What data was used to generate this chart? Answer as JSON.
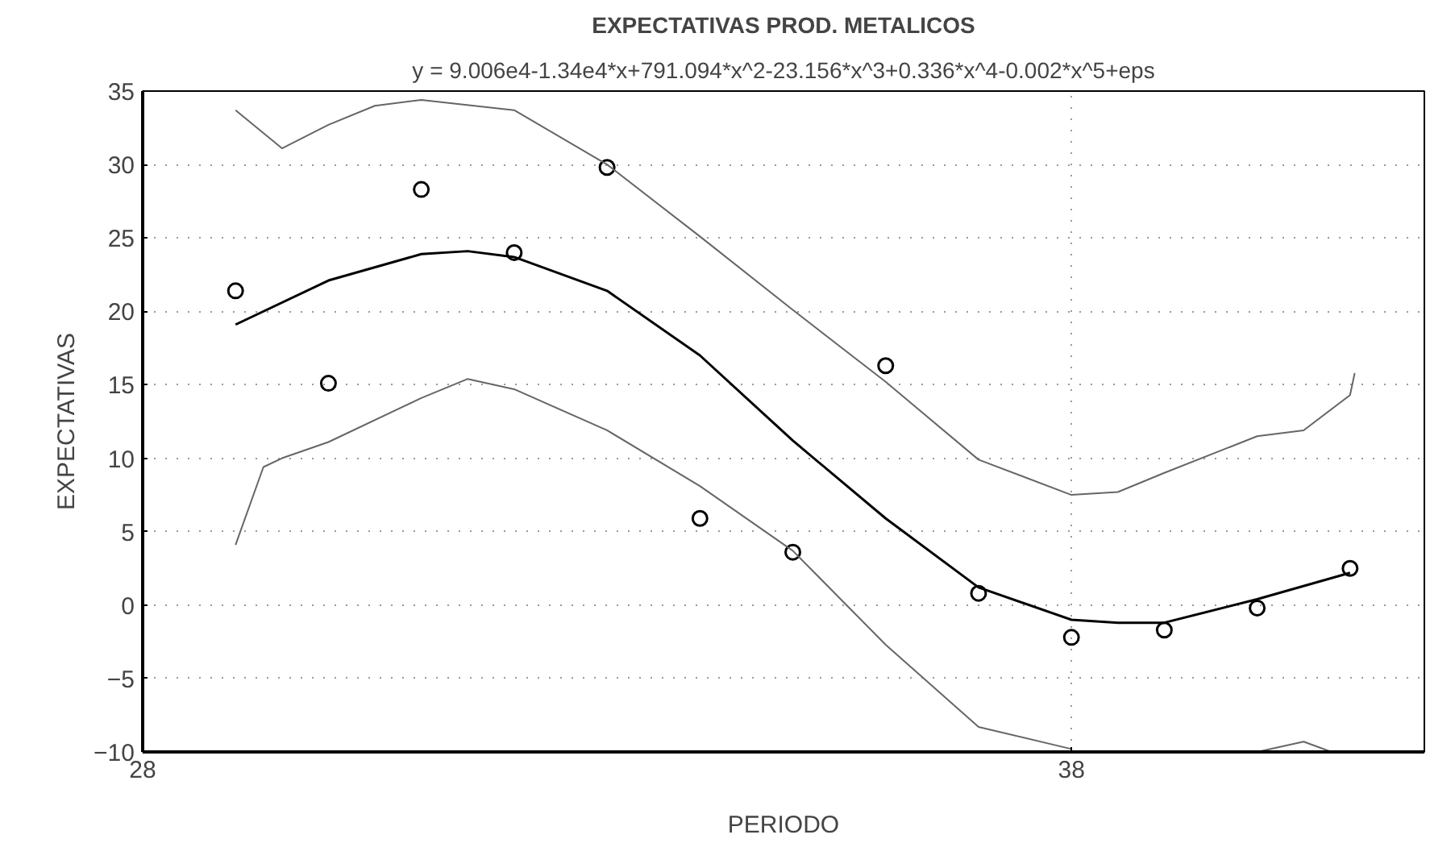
{
  "chart_data": {
    "type": "scatter",
    "title": "EXPECTATIVAS PROD. METALICOS",
    "subtitle": "y = 9.006e4-1.34e4*x+791.094*x^2-23.156*x^3+0.336*x^4-0.002*x^5+eps",
    "xlabel": "PERIODO",
    "ylabel": "EXPECTATIVAS",
    "xlim": [
      28,
      41.8
    ],
    "ylim": [
      -10,
      35
    ],
    "xticks": [
      28,
      38
    ],
    "yticks": [
      -10,
      -5,
      0,
      5,
      10,
      15,
      20,
      25,
      30,
      35
    ],
    "grid": true,
    "x": [
      29,
      30,
      31,
      32,
      33,
      34,
      35,
      36,
      37,
      38,
      39,
      40,
      41
    ],
    "series": [
      {
        "marker": "circle",
        "color": "#000000",
        "values": [
          21.4,
          15.1,
          28.3,
          24.0,
          29.8,
          5.9,
          3.6,
          16.3,
          0.8,
          -2.2,
          -1.7,
          -0.2,
          2.5
        ]
      },
      {
        "type": "line",
        "color": "#000000",
        "line_style": "solid",
        "x": [
          29,
          30,
          31,
          31.5,
          32,
          33,
          34,
          35,
          36,
          37,
          38,
          38.5,
          39,
          40,
          41
        ],
        "values": [
          19.1,
          22.1,
          23.9,
          24.1,
          23.7,
          21.4,
          17.0,
          11.2,
          5.9,
          1.2,
          -1.0,
          -1.2,
          -1.2,
          0.4,
          2.2
        ]
      },
      {
        "type": "line",
        "color": "#666666",
        "line_style": "solid",
        "x": [
          29,
          29.5,
          30,
          30.5,
          31,
          32,
          33,
          34,
          35,
          36,
          37,
          38,
          38.5,
          39,
          40,
          40.5,
          41,
          41.05
        ],
        "values": [
          33.7,
          31.1,
          32.7,
          34.0,
          34.4,
          33.7,
          30.0,
          25.1,
          20.1,
          15.2,
          9.9,
          7.5,
          7.7,
          9.0,
          11.5,
          11.9,
          14.3,
          15.8
        ]
      },
      {
        "type": "line",
        "color": "#666666",
        "line_style": "solid",
        "x": [
          29,
          29.3,
          29.5,
          30,
          31,
          31.5,
          32,
          33,
          34,
          35,
          36,
          37,
          38,
          38.6,
          39.3,
          40.0,
          40.5,
          40.8
        ],
        "values": [
          4.1,
          9.4,
          10.0,
          11.1,
          14.1,
          15.4,
          14.7,
          11.9,
          8.1,
          3.7,
          -2.7,
          -8.3,
          -9.8,
          null,
          null,
          -10,
          -9.3,
          -10
        ]
      }
    ]
  }
}
